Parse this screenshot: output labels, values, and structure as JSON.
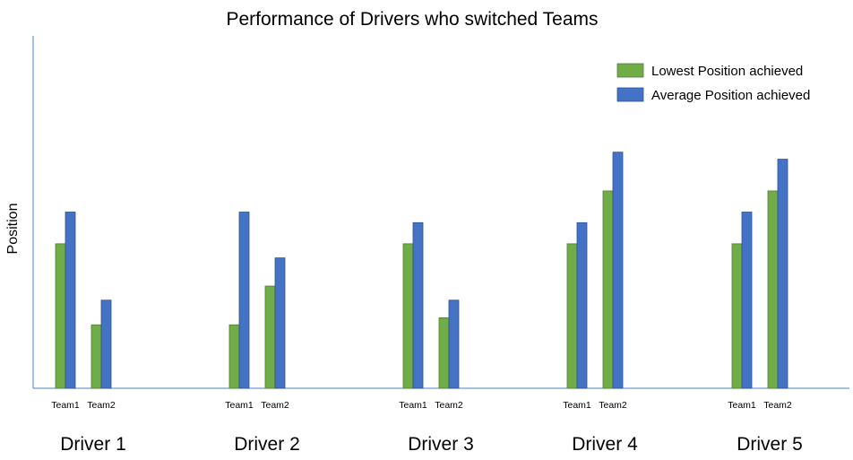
{
  "chart_data": {
    "type": "bar",
    "title": "Performance of Drivers who switched Teams",
    "xlabel": "",
    "ylabel": "Position",
    "ylim": [
      0,
      10
    ],
    "y_tick_labels_shown": false,
    "grid": false,
    "legend_position": "top-right",
    "groups": [
      "Driver 1",
      "Driver 2",
      "Driver 3",
      "Driver 4",
      "Driver 5"
    ],
    "sub_categories": [
      "Team1",
      "Team2"
    ],
    "series": [
      {
        "name": "Lowest Position achieved",
        "color": "#70AD47",
        "values": [
          [
            4.1,
            1.8
          ],
          [
            1.8,
            2.9
          ],
          [
            4.1,
            2.0
          ],
          [
            4.1,
            5.6
          ],
          [
            4.1,
            5.6
          ]
        ]
      },
      {
        "name": "Average Position achieved",
        "color": "#4472C4",
        "values": [
          [
            5.0,
            2.5
          ],
          [
            5.0,
            3.7
          ],
          [
            4.7,
            2.5
          ],
          [
            4.7,
            6.7
          ],
          [
            5.0,
            6.5
          ]
        ]
      }
    ]
  }
}
